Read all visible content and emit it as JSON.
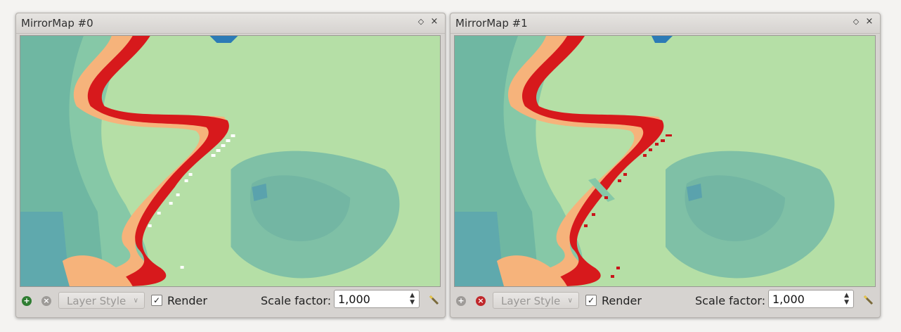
{
  "panels": [
    {
      "title": "MirrorMap #0",
      "float_icon": "◇",
      "close_icon": "×",
      "add_icon": "+",
      "remove_icon": "×",
      "add_enabled": true,
      "remove_enabled": false,
      "layer_style_label": "Layer Style",
      "render_label": "Render",
      "render_checked": true,
      "scale_label": "Scale factor:",
      "scale_value": "1,000"
    },
    {
      "title": "MirrorMap #1",
      "float_icon": "◇",
      "close_icon": "×",
      "add_icon": "+",
      "remove_icon": "×",
      "add_enabled": false,
      "remove_enabled": true,
      "layer_style_label": "Layer Style",
      "render_label": "Render",
      "render_checked": true,
      "scale_label": "Scale factor:",
      "scale_value": "1,000"
    }
  ],
  "colors": {
    "add_enabled": "#2f7d32",
    "remove_enabled": "#c0282b",
    "disabled": "#9e9b98",
    "river": "#d7191c",
    "accent_water": "#2c7bb6"
  }
}
